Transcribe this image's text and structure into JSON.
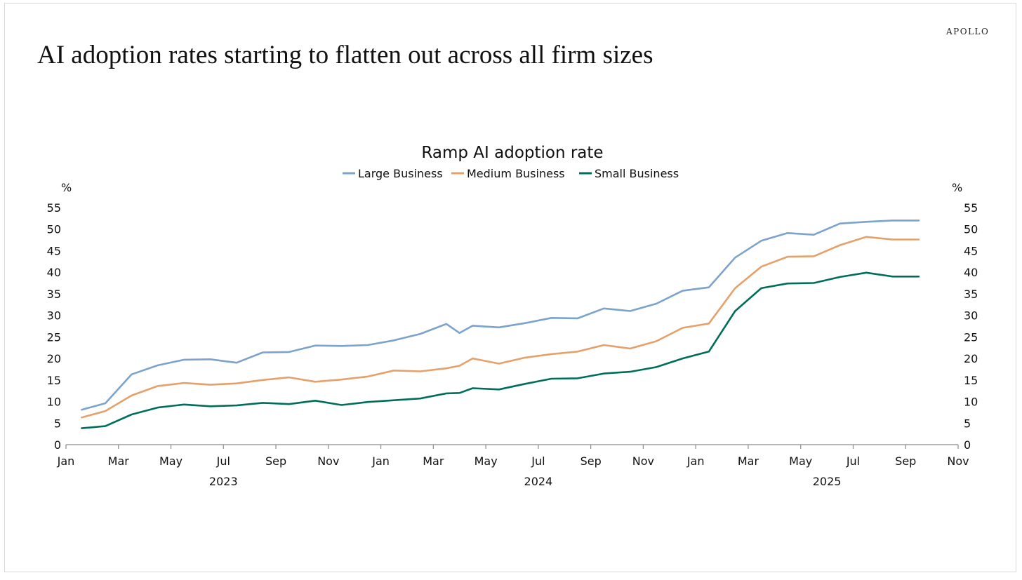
{
  "brand": "APOLLO",
  "headline": "AI adoption rates starting to flatten out across all firm sizes",
  "chart_data": {
    "type": "line",
    "title": "Ramp AI adoption rate",
    "ylabel_left": "%",
    "ylabel_right": "%",
    "ylim": [
      0,
      55
    ],
    "yticks": [
      "0",
      "5",
      "10",
      "15",
      "20",
      "25",
      "30",
      "35",
      "40",
      "45",
      "50",
      "55"
    ],
    "xlim_months": [
      0,
      34
    ],
    "month_ticks": [
      "Jan",
      "Mar",
      "May",
      "Jul",
      "Sep",
      "Nov",
      "Jan",
      "Mar",
      "May",
      "Jul",
      "Sep",
      "Nov",
      "Jan",
      "Mar",
      "May",
      "Jul",
      "Sep",
      "Nov"
    ],
    "year_labels": [
      {
        "label": "2023",
        "month": 6
      },
      {
        "label": "2024",
        "month": 18
      },
      {
        "label": "2025",
        "month": 29
      }
    ],
    "x_months": [
      0.6,
      1.5,
      2.5,
      3.5,
      4.5,
      5.5,
      6.5,
      7.5,
      8.5,
      9.5,
      10.5,
      11.5,
      12.5,
      13.5,
      14.5,
      15.0,
      15.5,
      16.5,
      17.5,
      18.5,
      19.5,
      20.5,
      21.5,
      22.5,
      23.5,
      24.5,
      25.5,
      26.5,
      27.5,
      28.5,
      29.5,
      30.5,
      31.5,
      32.5
    ],
    "series": [
      {
        "name": "Large Business",
        "color": "#7ba3cc",
        "values": [
          8.1,
          9.6,
          16.3,
          18.4,
          19.7,
          19.8,
          19.0,
          21.4,
          21.5,
          23.0,
          22.9,
          23.1,
          24.2,
          25.7,
          28.0,
          25.9,
          27.6,
          27.2,
          28.2,
          29.4,
          29.3,
          31.6,
          31.0,
          32.7,
          35.7,
          36.5,
          43.4,
          47.3,
          49.1,
          48.7,
          51.3,
          51.7,
          52.0,
          52.0
        ]
      },
      {
        "name": "Medium Business",
        "color": "#e5a06b",
        "values": [
          6.3,
          7.8,
          11.4,
          13.6,
          14.3,
          13.9,
          14.2,
          15.0,
          15.6,
          14.6,
          15.1,
          15.8,
          17.2,
          17.0,
          17.7,
          18.3,
          20.0,
          18.8,
          20.2,
          21.0,
          21.6,
          23.1,
          22.3,
          24.0,
          27.1,
          28.1,
          36.3,
          41.3,
          43.6,
          43.7,
          46.3,
          48.2,
          47.6,
          47.6
        ]
      },
      {
        "name": "Small Business",
        "color": "#006e5a",
        "values": [
          3.8,
          4.3,
          7.0,
          8.6,
          9.3,
          8.9,
          9.1,
          9.7,
          9.4,
          10.2,
          9.2,
          9.9,
          10.3,
          10.7,
          11.9,
          12.0,
          13.1,
          12.8,
          14.1,
          15.3,
          15.4,
          16.5,
          16.9,
          18.0,
          20.0,
          21.6,
          31.0,
          36.3,
          37.4,
          37.5,
          38.9,
          39.9,
          39.0,
          39.0
        ]
      }
    ]
  }
}
